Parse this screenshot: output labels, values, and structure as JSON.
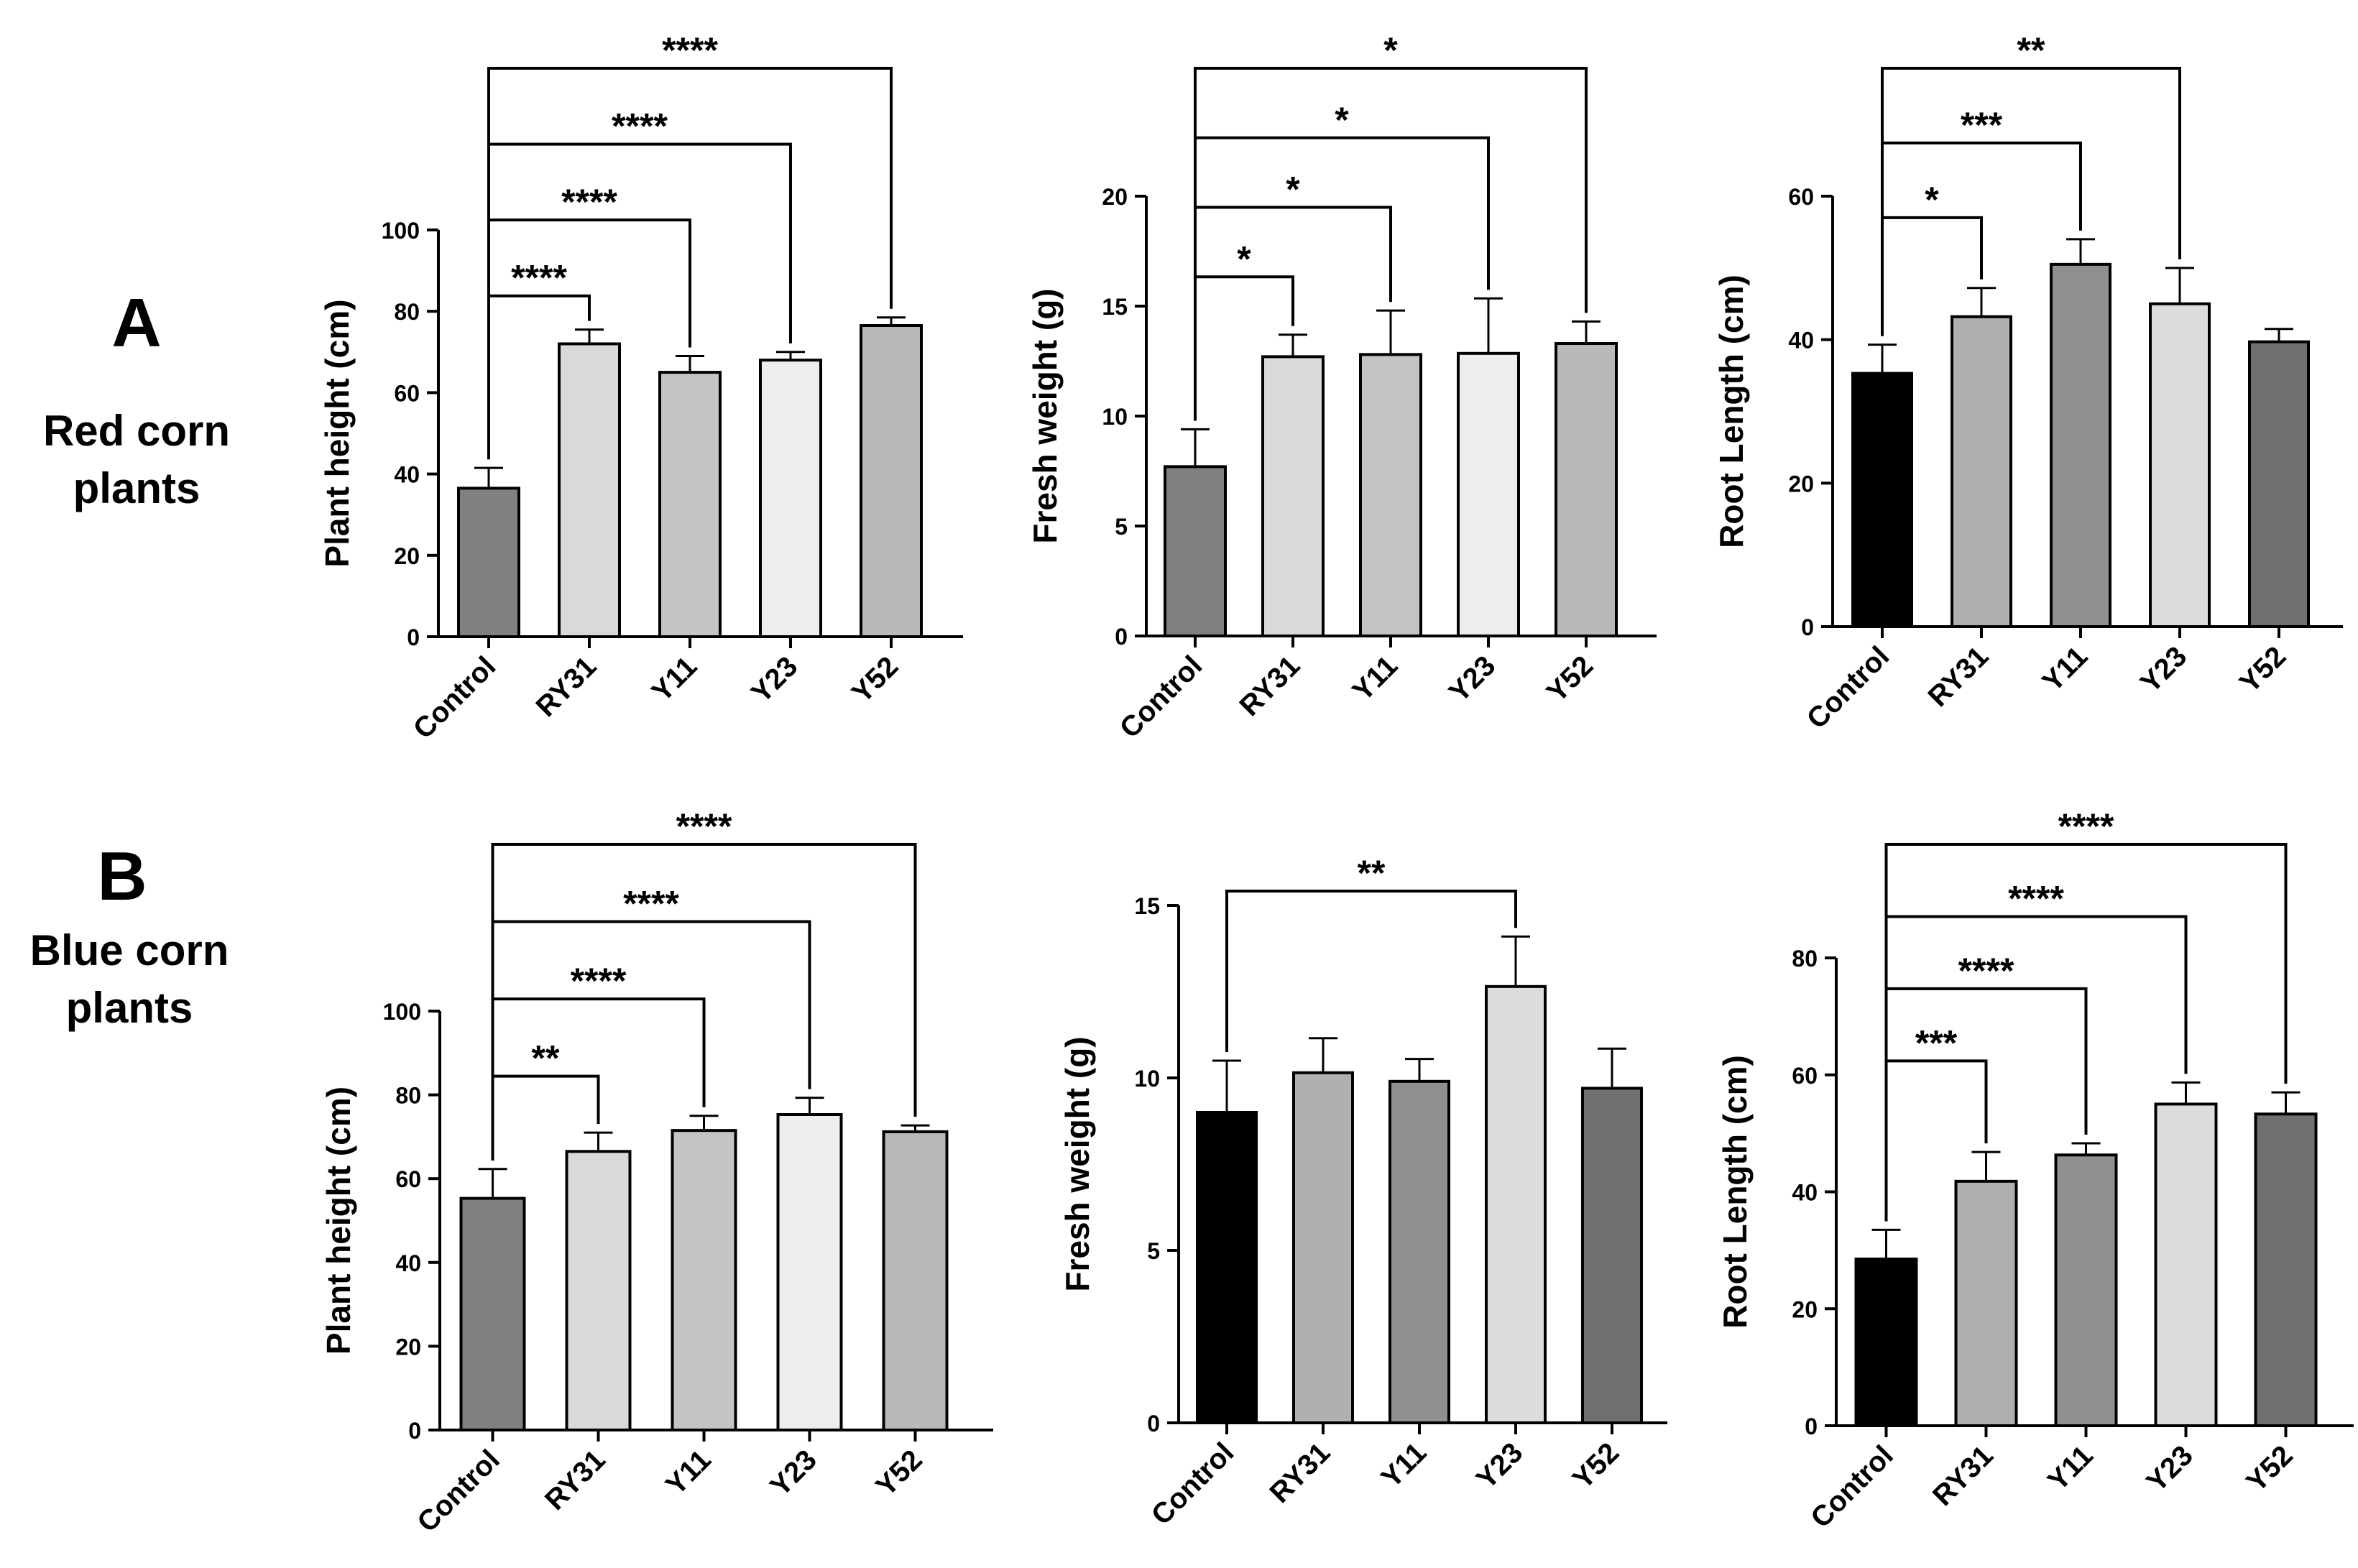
{
  "rows": [
    {
      "letter": "A",
      "label_lines": [
        "Red corn",
        "plants"
      ]
    },
    {
      "letter": "B",
      "label_lines": [
        "Blue corn",
        "plants"
      ]
    }
  ],
  "chart_data": [
    {
      "id": "a1",
      "type": "bar",
      "row": "A",
      "categories": [
        "Control",
        "RY31",
        "Y11",
        "Y23",
        "Y52"
      ],
      "values": [
        36.5,
        72,
        65,
        68,
        76.5
      ],
      "errors": [
        5,
        3.5,
        4,
        2,
        2
      ],
      "colors": [
        "#808080",
        "#d9d9d9",
        "#c4c4c4",
        "#ededed",
        "#b9b9b9"
      ],
      "ylabel": "Plant height (cm)",
      "ylim": [
        0,
        100
      ],
      "yticks": [
        0,
        20,
        40,
        60,
        80,
        100
      ],
      "significance": [
        {
          "from": 0,
          "to": 1,
          "label": "****"
        },
        {
          "from": 0,
          "to": 2,
          "label": "****"
        },
        {
          "from": 0,
          "to": 3,
          "label": "****"
        },
        {
          "from": 0,
          "to": 4,
          "label": "****"
        }
      ]
    },
    {
      "id": "a2",
      "type": "bar",
      "row": "A",
      "categories": [
        "Control",
        "RY31",
        "Y11",
        "Y23",
        "Y52"
      ],
      "values": [
        7.7,
        12.7,
        12.8,
        12.85,
        13.3
      ],
      "errors": [
        1.7,
        1.0,
        2.0,
        2.5,
        1.0
      ],
      "colors": [
        "#808080",
        "#d9d9d9",
        "#c4c4c4",
        "#ededed",
        "#b9b9b9"
      ],
      "ylabel": "Fresh weight (g)",
      "ylim": [
        0,
        20
      ],
      "yticks": [
        0,
        5,
        10,
        15,
        20
      ],
      "significance": [
        {
          "from": 0,
          "to": 1,
          "label": "*"
        },
        {
          "from": 0,
          "to": 2,
          "label": "*"
        },
        {
          "from": 0,
          "to": 3,
          "label": "*"
        },
        {
          "from": 0,
          "to": 4,
          "label": "*"
        }
      ]
    },
    {
      "id": "a3",
      "type": "bar",
      "row": "A",
      "categories": [
        "Control",
        "RY31",
        "Y11",
        "Y23",
        "Y52"
      ],
      "values": [
        35.3,
        43.2,
        50.5,
        45,
        39.7
      ],
      "errors": [
        4,
        4,
        3.5,
        5,
        1.8
      ],
      "colors": [
        "#000000",
        "#b0b0b0",
        "#909090",
        "#dcdcdc",
        "#707070"
      ],
      "ylabel": "Root Length (cm)",
      "ylim": [
        0,
        60
      ],
      "yticks": [
        0,
        20,
        40,
        60
      ],
      "significance": [
        {
          "from": 0,
          "to": 1,
          "label": "*"
        },
        {
          "from": 0,
          "to": 2,
          "label": "***"
        },
        {
          "from": 0,
          "to": 3,
          "label": "**"
        }
      ]
    },
    {
      "id": "b1",
      "type": "bar",
      "row": "B",
      "categories": [
        "Control",
        "RY31",
        "Y11",
        "Y23",
        "Y52"
      ],
      "values": [
        55.3,
        66.5,
        71.5,
        75.3,
        71.2
      ],
      "errors": [
        7,
        4.5,
        3.5,
        4,
        1.5
      ],
      "colors": [
        "#808080",
        "#d9d9d9",
        "#c4c4c4",
        "#ededed",
        "#b9b9b9"
      ],
      "ylabel": "Plant height (cm)",
      "ylim": [
        0,
        100
      ],
      "yticks": [
        0,
        20,
        40,
        60,
        80,
        100
      ],
      "significance": [
        {
          "from": 0,
          "to": 1,
          "label": "**"
        },
        {
          "from": 0,
          "to": 2,
          "label": "****"
        },
        {
          "from": 0,
          "to": 3,
          "label": "****"
        },
        {
          "from": 0,
          "to": 4,
          "label": "****"
        }
      ]
    },
    {
      "id": "b2",
      "type": "bar",
      "row": "B",
      "categories": [
        "Control",
        "RY31",
        "Y11",
        "Y23",
        "Y52"
      ],
      "values": [
        9.0,
        10.15,
        9.9,
        12.65,
        9.7
      ],
      "errors": [
        1.5,
        1.0,
        0.65,
        1.45,
        1.15
      ],
      "colors": [
        "#000000",
        "#b0b0b0",
        "#909090",
        "#dcdcdc",
        "#707070"
      ],
      "ylabel": "Fresh weight (g)",
      "ylim": [
        0,
        15
      ],
      "yticks": [
        0,
        5,
        10,
        15
      ],
      "significance": [
        {
          "from": 0,
          "to": 3,
          "label": "**"
        }
      ]
    },
    {
      "id": "b3",
      "type": "bar",
      "row": "B",
      "categories": [
        "Control",
        "RY31",
        "Y11",
        "Y23",
        "Y52"
      ],
      "values": [
        28.5,
        41.8,
        46.3,
        55,
        53.3
      ],
      "errors": [
        5,
        5,
        2,
        3.7,
        3.7
      ],
      "colors": [
        "#000000",
        "#b0b0b0",
        "#909090",
        "#dcdcdc",
        "#707070"
      ],
      "ylabel": "Root Length (cm)",
      "ylim": [
        0,
        80
      ],
      "yticks": [
        0,
        20,
        40,
        60,
        80
      ],
      "significance": [
        {
          "from": 0,
          "to": 1,
          "label": "***"
        },
        {
          "from": 0,
          "to": 2,
          "label": "****"
        },
        {
          "from": 0,
          "to": 3,
          "label": "****"
        },
        {
          "from": 0,
          "to": 4,
          "label": "****"
        }
      ]
    }
  ]
}
